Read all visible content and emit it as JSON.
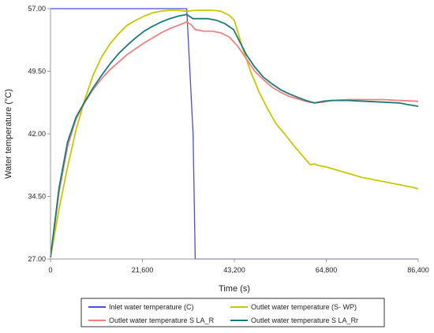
{
  "chart_data": {
    "type": "line",
    "title": "",
    "xlabel": "Time (s)",
    "ylabel": "Water temperature (°C)",
    "xlim": [
      0,
      86400
    ],
    "ylim": [
      27,
      57
    ],
    "x_ticks": [
      0,
      21600,
      43200,
      64800,
      86400
    ],
    "x_tick_labels": [
      "0",
      "21,600",
      "43,200",
      "64,800",
      "86,400"
    ],
    "y_ticks": [
      27,
      34.5,
      42,
      49.5,
      57
    ],
    "y_tick_labels": [
      "27.00",
      "34.50",
      "42.00",
      "49.50",
      "57.00"
    ],
    "grid": false,
    "legend_position": "bottom",
    "series": [
      {
        "name": "Inlet water temperature (C)",
        "color": "#4b4bdc",
        "points": [
          [
            0,
            57
          ],
          [
            30000,
            57
          ],
          [
            32000,
            57
          ],
          [
            33500,
            42
          ],
          [
            34000,
            27
          ],
          [
            86400,
            27
          ]
        ]
      },
      {
        "name": "Outlet water temperature (S- WP)",
        "color": "#c8c800",
        "points": [
          [
            0,
            27.2
          ],
          [
            2000,
            33
          ],
          [
            4000,
            38
          ],
          [
            6000,
            42.5
          ],
          [
            8000,
            46
          ],
          [
            10000,
            49
          ],
          [
            12000,
            51.2
          ],
          [
            14000,
            52.8
          ],
          [
            16000,
            54
          ],
          [
            18000,
            55
          ],
          [
            20000,
            55.6
          ],
          [
            22000,
            56.1
          ],
          [
            24000,
            56.5
          ],
          [
            26000,
            56.7
          ],
          [
            28000,
            56.8
          ],
          [
            30000,
            56.8
          ],
          [
            32000,
            56.7
          ],
          [
            34000,
            56.8
          ],
          [
            36000,
            56.8
          ],
          [
            38000,
            56.8
          ],
          [
            40000,
            56.7
          ],
          [
            42000,
            56.2
          ],
          [
            43200,
            55.6
          ],
          [
            45000,
            52.5
          ],
          [
            47000,
            49.5
          ],
          [
            49000,
            47
          ],
          [
            51000,
            45
          ],
          [
            53000,
            43.2
          ],
          [
            55000,
            42
          ],
          [
            57000,
            40.7
          ],
          [
            59000,
            39.5
          ],
          [
            61000,
            38.3
          ],
          [
            62000,
            38.4
          ],
          [
            63000,
            38.2
          ],
          [
            65000,
            38
          ],
          [
            67000,
            37.7
          ],
          [
            69000,
            37.4
          ],
          [
            71000,
            37.1
          ],
          [
            73000,
            36.8
          ],
          [
            75000,
            36.6
          ],
          [
            77000,
            36.4
          ],
          [
            79000,
            36.2
          ],
          [
            81000,
            36
          ],
          [
            83000,
            35.8
          ],
          [
            85000,
            35.6
          ],
          [
            86400,
            35.4
          ]
        ]
      },
      {
        "name": "Outlet water temperature S LA_R",
        "color": "#f08080",
        "points": [
          [
            0,
            27.2
          ],
          [
            2000,
            35
          ],
          [
            4000,
            40.5
          ],
          [
            6000,
            43.8
          ],
          [
            8000,
            45.7
          ],
          [
            10000,
            47.3
          ],
          [
            12000,
            48.6
          ],
          [
            14000,
            49.7
          ],
          [
            16000,
            50.6
          ],
          [
            18000,
            51.5
          ],
          [
            20000,
            52.2
          ],
          [
            22000,
            52.9
          ],
          [
            24000,
            53.5
          ],
          [
            26000,
            54.1
          ],
          [
            28000,
            54.6
          ],
          [
            30000,
            55
          ],
          [
            32000,
            55.4
          ],
          [
            33000,
            55.1
          ],
          [
            34000,
            54.5
          ],
          [
            36000,
            54.3
          ],
          [
            38000,
            54.3
          ],
          [
            40000,
            54.1
          ],
          [
            42000,
            53.6
          ],
          [
            44000,
            52.5
          ],
          [
            46000,
            51
          ],
          [
            48000,
            49.5
          ],
          [
            50000,
            48.5
          ],
          [
            52000,
            47.6
          ],
          [
            54000,
            47
          ],
          [
            56000,
            46.5
          ],
          [
            58000,
            46.2
          ],
          [
            60000,
            45.9
          ],
          [
            62000,
            45.7
          ],
          [
            64000,
            45.8
          ],
          [
            66000,
            46
          ],
          [
            70000,
            46.1
          ],
          [
            74000,
            46.1
          ],
          [
            78000,
            46.1
          ],
          [
            82000,
            46
          ],
          [
            86400,
            45.9
          ]
        ]
      },
      {
        "name": "Outlet water temperature S LA_Rr",
        "color": "#1a7a7a",
        "points": [
          [
            0,
            27.2
          ],
          [
            2000,
            35.5
          ],
          [
            4000,
            41
          ],
          [
            6000,
            44
          ],
          [
            8000,
            45.8
          ],
          [
            10000,
            47.5
          ],
          [
            12000,
            49
          ],
          [
            14000,
            50.4
          ],
          [
            16000,
            51.6
          ],
          [
            18000,
            52.6
          ],
          [
            20000,
            53.5
          ],
          [
            22000,
            54.3
          ],
          [
            24000,
            54.9
          ],
          [
            26000,
            55.4
          ],
          [
            28000,
            55.8
          ],
          [
            30000,
            56.1
          ],
          [
            32000,
            56.3
          ],
          [
            33500,
            55.8
          ],
          [
            35000,
            55.8
          ],
          [
            37000,
            55.8
          ],
          [
            39000,
            55.6
          ],
          [
            41000,
            55.2
          ],
          [
            43000,
            54.5
          ],
          [
            44500,
            53
          ],
          [
            46000,
            51.5
          ],
          [
            48000,
            50
          ],
          [
            50000,
            48.8
          ],
          [
            52000,
            48
          ],
          [
            54000,
            47.3
          ],
          [
            56000,
            46.8
          ],
          [
            58000,
            46.4
          ],
          [
            60000,
            46
          ],
          [
            62000,
            45.7
          ],
          [
            64000,
            45.9
          ],
          [
            66000,
            46
          ],
          [
            70000,
            46
          ],
          [
            74000,
            45.9
          ],
          [
            78000,
            45.8
          ],
          [
            82000,
            45.7
          ],
          [
            84000,
            45.5
          ],
          [
            86400,
            45.3
          ]
        ]
      }
    ]
  }
}
